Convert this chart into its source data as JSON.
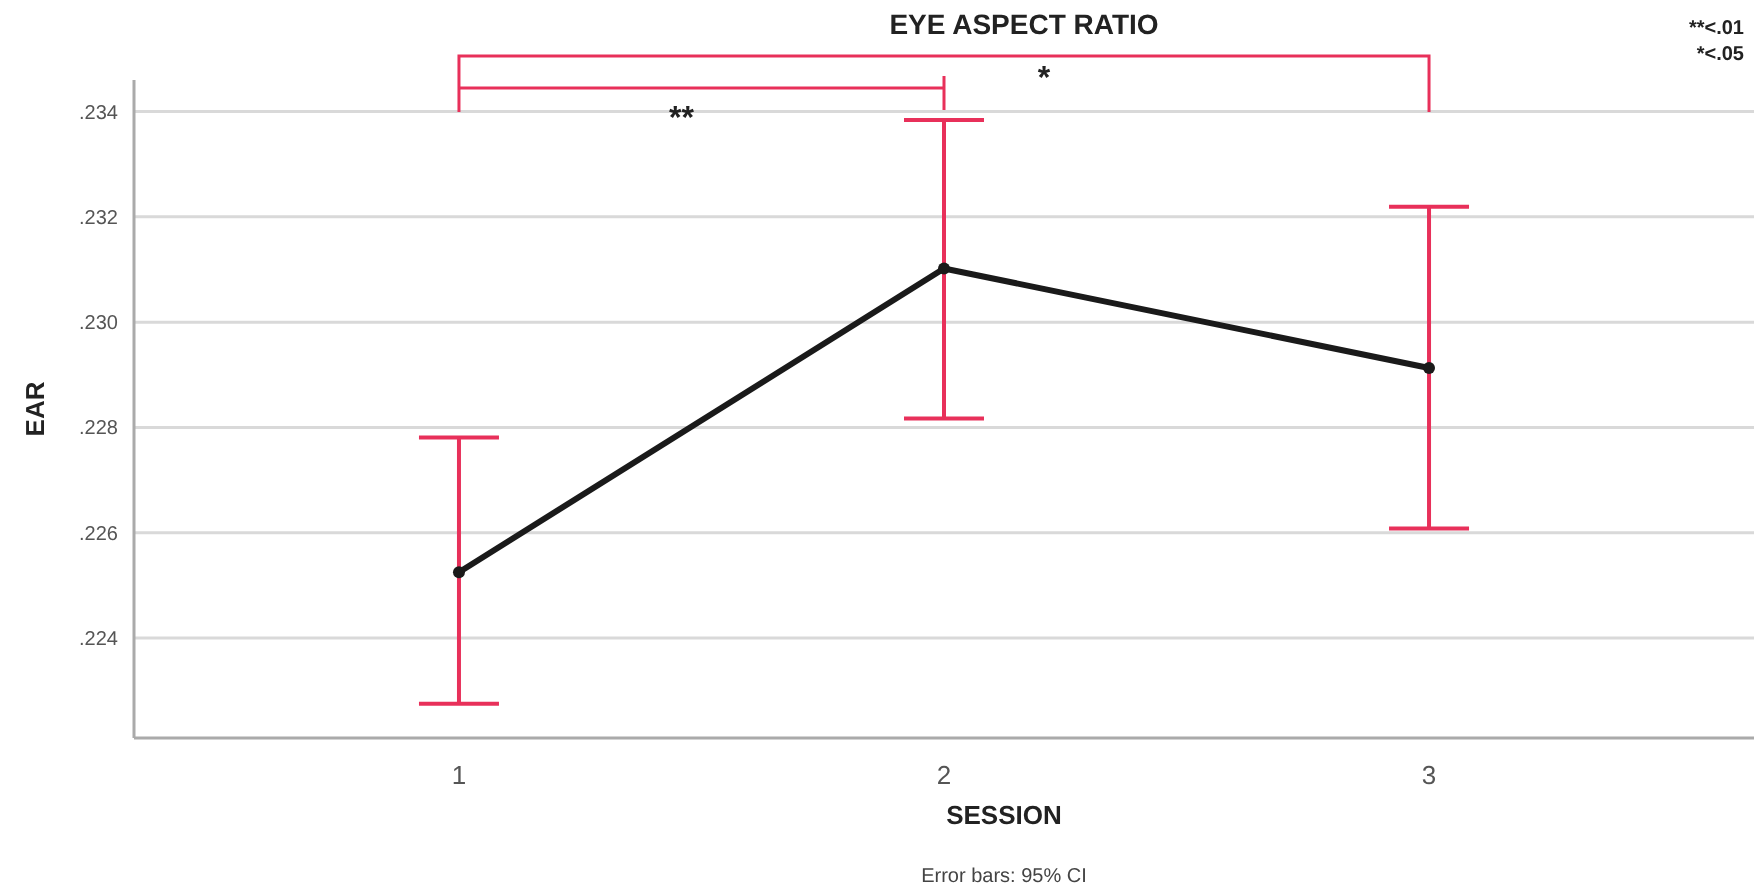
{
  "chart_data": {
    "type": "line",
    "title": "EYE ASPECT RATIO",
    "xlabel": "SESSION",
    "ylabel": "EAR",
    "categories": [
      "1",
      "2",
      "3"
    ],
    "series": [
      {
        "color": "#1a1a1a",
        "values": [
          0.22525,
          0.23102,
          0.22913
        ],
        "errors": [
          [
            0.22275,
            0.22781
          ],
          [
            0.22817,
            0.23384
          ],
          [
            0.22608,
            0.23219
          ]
        ]
      }
    ],
    "ylim": [
      0.2221,
      0.2346
    ],
    "yticks": [
      {
        "value": 0.224,
        "label": ".224"
      },
      {
        "value": 0.226,
        "label": ".226"
      },
      {
        "value": 0.228,
        "label": ".228"
      },
      {
        "value": 0.23,
        "label": ".230"
      },
      {
        "value": 0.232,
        "label": ".232"
      },
      {
        "value": 0.234,
        "label": ".234"
      }
    ],
    "grid": "y",
    "marker": "circle",
    "line_style": "solid",
    "annotations": [
      "**",
      "*",
      "**<.01",
      "*<.05",
      "Error bars: 95% CI"
    ]
  }
}
